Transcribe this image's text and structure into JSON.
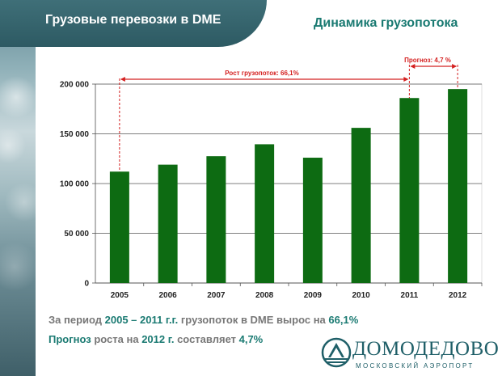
{
  "header": {
    "title": "Грузовые перевозки в DME"
  },
  "chart_data": {
    "type": "bar",
    "title": "Динамика грузопотока",
    "categories": [
      "2005",
      "2006",
      "2007",
      "2008",
      "2009",
      "2010",
      "2011",
      "2012"
    ],
    "values": [
      112000,
      119000,
      127500,
      139500,
      126000,
      156000,
      186000,
      195000
    ],
    "ylim": [
      0,
      200000
    ],
    "yticks": [
      0,
      50000,
      100000,
      150000,
      200000
    ],
    "ytick_labels": [
      "0",
      "50 000",
      "100 000",
      "150 000",
      "200 000"
    ],
    "grid": true,
    "bar_color": "#0d6b12",
    "annotations": {
      "growth": "Рост грузопоток: 66,1%",
      "forecast": "Прогноз: 4,7 %"
    }
  },
  "summary": {
    "l1_a": "За период ",
    "l1_b": "2005 – 2011 г.г.",
    "l1_c": " грузопоток в DME вырос на ",
    "l1_d": "66,1%",
    "l2_a": "Прогноз",
    "l2_b": " роста на ",
    "l2_c": "2012 г.",
    "l2_d": " составляет ",
    "l2_e": "4,7%"
  },
  "logo": {
    "name": "ДОМОДЕДОВО",
    "subtitle": "МОСКОВСКИЙ АЭРОПОРТ"
  },
  "colors": {
    "accent": "#1a7a72",
    "bar": "#0d6b12",
    "annotation": "#d42020",
    "header": "#2d5a63"
  }
}
